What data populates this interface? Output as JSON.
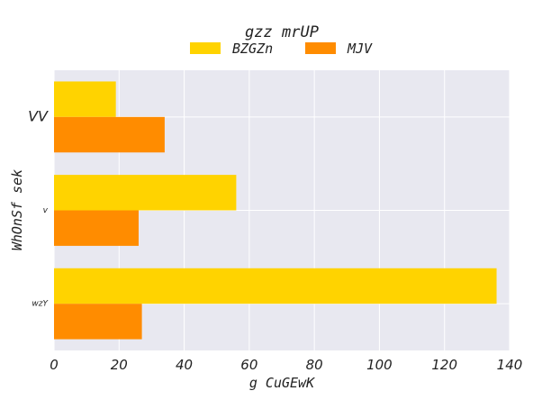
{
  "chart_data": {
    "type": "bar",
    "orientation": "horizontal",
    "title": "gzz mrUP",
    "xlabel": "g CuGEwK",
    "ylabel": "WhOnSf  sek",
    "categories": [
      "VV",
      "v",
      "wzY"
    ],
    "series": [
      {
        "name": "BZGZn",
        "color": "#FFD300",
        "values": [
          19,
          56,
          136
        ]
      },
      {
        "name": "MJV",
        "color": "#FF8C00",
        "values": [
          34,
          26,
          27
        ]
      }
    ],
    "xlim": [
      0,
      140
    ],
    "xticks": [
      "0",
      "20",
      "40",
      "60",
      "80",
      "100",
      "120",
      "140"
    ],
    "grid": true,
    "legend_position": "top-center",
    "colors": {
      "plot_background": "#E8E8F0",
      "grid": "#ffffff"
    }
  }
}
